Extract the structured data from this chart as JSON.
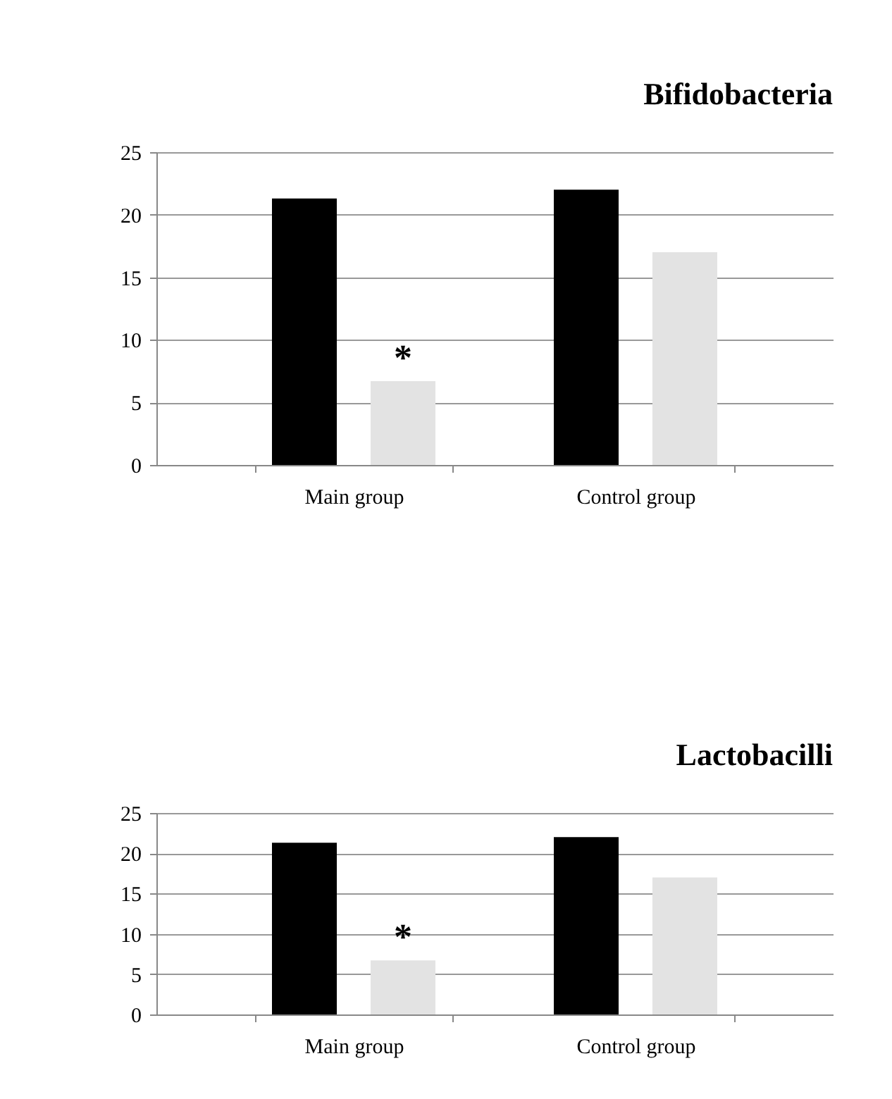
{
  "chart_data": [
    {
      "type": "bar",
      "title": "Bifidobacteria",
      "categories": [
        "Main group",
        "Control group"
      ],
      "series": [
        {
          "color": "#000000",
          "values": [
            21.3,
            22
          ]
        },
        {
          "color": "#e3e3e3",
          "values": [
            6.7,
            17
          ]
        }
      ],
      "ylim": [
        0,
        25
      ],
      "yticks": [
        0,
        5,
        10,
        15,
        20,
        25
      ],
      "grid": "y",
      "legend": false,
      "annotations": [
        "*"
      ]
    },
    {
      "type": "bar",
      "title": "Lactobacilli",
      "categories": [
        "Main group",
        "Control group"
      ],
      "series": [
        {
          "color": "#000000",
          "values": [
            21.3,
            22
          ]
        },
        {
          "color": "#e3e3e3",
          "values": [
            6.7,
            17
          ]
        }
      ],
      "ylim": [
        0,
        25
      ],
      "yticks": [
        0,
        5,
        10,
        15,
        20,
        25
      ],
      "grid": "y",
      "legend": false,
      "annotations": [
        "*"
      ]
    }
  ]
}
